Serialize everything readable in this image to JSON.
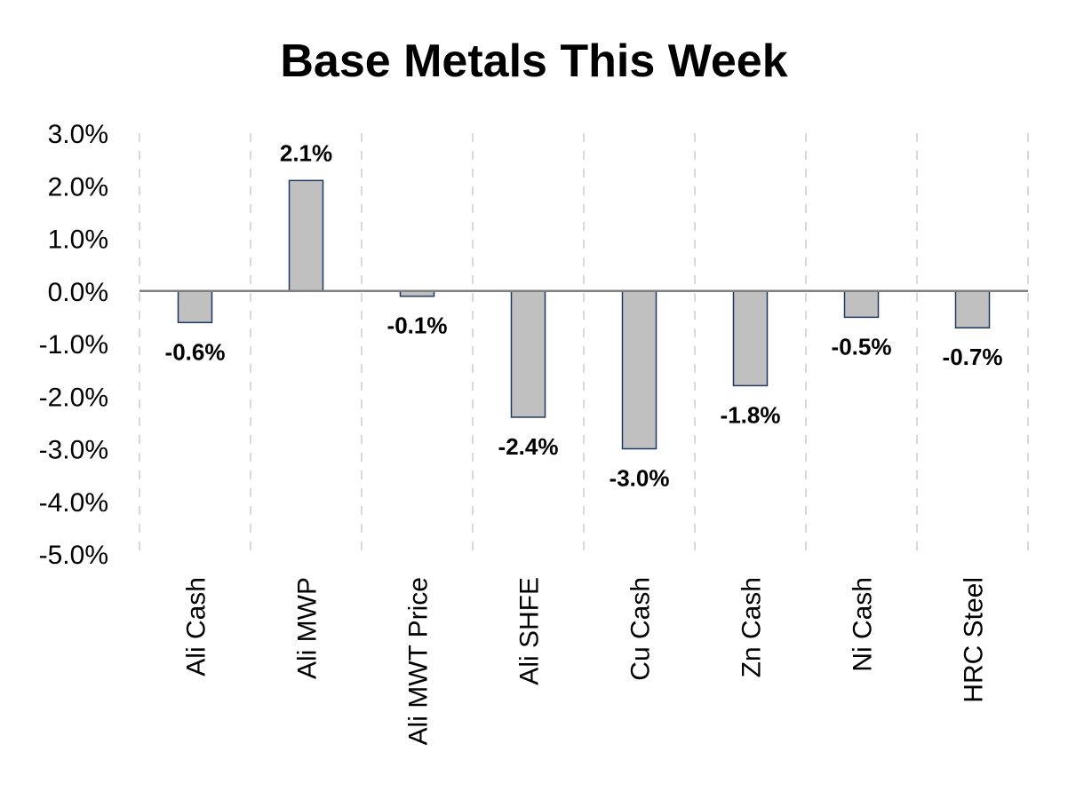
{
  "chart_data": {
    "type": "bar",
    "title": "Base Metals This Week",
    "categories": [
      "Ali Cash",
      "Ali MWP",
      "Ali MWT Price",
      "Ali SHFE",
      "Cu Cash",
      "Zn Cash",
      "Ni Cash",
      "HRC Steel"
    ],
    "values": [
      -0.6,
      2.1,
      -0.1,
      -2.4,
      -3.0,
      -1.8,
      -0.5,
      -0.7
    ],
    "data_labels": [
      "-0.6%",
      "2.1%",
      "-0.1%",
      "-2.4%",
      "-3.0%",
      "-1.8%",
      "-0.5%",
      "-0.7%"
    ],
    "y_ticks": [
      3,
      2,
      1,
      0,
      -1,
      -2,
      -3,
      -4,
      -5
    ],
    "y_tick_labels": [
      "3.0%",
      "2.0%",
      "1.0%",
      "0.0%",
      "-1.0%",
      "-2.0%",
      "-3.0%",
      "-4.0%",
      "-5.0%"
    ],
    "ylim": [
      -5,
      3
    ],
    "xlabel": "",
    "ylabel": "",
    "grid": "vertical dashed",
    "legend": "none",
    "colors": {
      "bar_fill": "#c0c0c0",
      "bar_stroke": "#1f3864",
      "zero_line": "#808080",
      "grid": "#d9d9d9"
    }
  }
}
